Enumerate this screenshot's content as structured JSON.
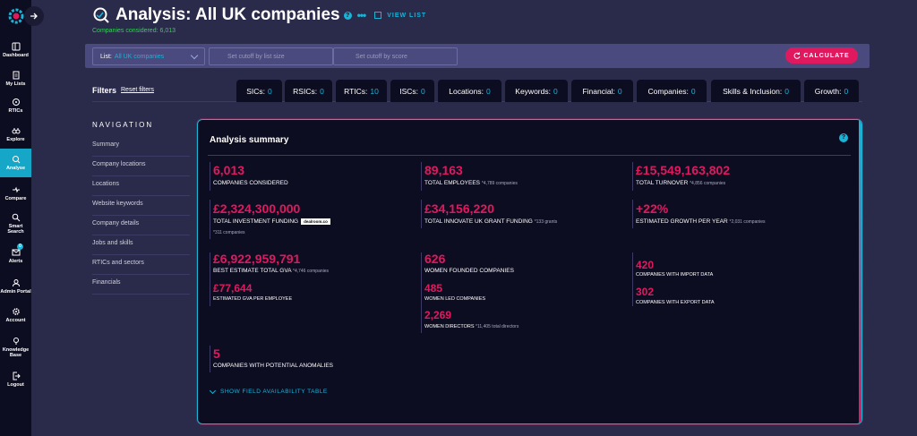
{
  "sidebar": {
    "items": [
      {
        "label": "Dashboard",
        "icon": "dashboard-icon"
      },
      {
        "label": "My Lists",
        "icon": "list-icon"
      },
      {
        "label": "RTICs",
        "icon": "rtics-icon"
      },
      {
        "label": "Explore",
        "icon": "binoculars-icon"
      },
      {
        "label": "Analyse",
        "icon": "analyse-icon"
      },
      {
        "label": "Compare",
        "icon": "compare-icon"
      },
      {
        "label": "Smart Search",
        "icon": "search-icon"
      },
      {
        "label": "Alerts",
        "icon": "alert-icon"
      },
      {
        "label": "Admin Portal",
        "icon": "admin-icon"
      },
      {
        "label": "Account",
        "icon": "gear-icon"
      },
      {
        "label": "Knowledge Base",
        "icon": "lightbulb-icon"
      },
      {
        "label": "Logout",
        "icon": "logout-icon"
      }
    ],
    "alerts_badge": "0"
  },
  "header": {
    "title": "Analysis: All UK companies",
    "more": "•••",
    "view_list": "VIEW LIST",
    "considered": "Companies considered: 6,013"
  },
  "listbar": {
    "list_prefix": "List:",
    "list_value": "All UK companies",
    "cutoff_list_size_placeholder": "Set cutoff by list size",
    "cutoff_score_placeholder": "Set cutoff by score",
    "calculate": "CALCULATE"
  },
  "filters": {
    "label": "Filters",
    "reset": "Reset filters",
    "tabs": [
      {
        "label": "SICs:",
        "count": "0"
      },
      {
        "label": "RSICs:",
        "count": "0"
      },
      {
        "label": "RTICs:",
        "count": "10"
      },
      {
        "label": "ISCs:",
        "count": "0"
      },
      {
        "label": "Locations:",
        "count": "0"
      },
      {
        "label": "Keywords:",
        "count": "0"
      },
      {
        "label": "Financial:",
        "count": "0"
      },
      {
        "label": "Companies:",
        "count": "0"
      },
      {
        "label": "Skills & Inclusion:",
        "count": "0"
      },
      {
        "label": "Growth:",
        "count": "0"
      }
    ]
  },
  "nav": {
    "title": "NAVIGATION",
    "items": [
      "Summary",
      "Company locations",
      "Locations",
      "Website keywords",
      "Company details",
      "Jobs and skills",
      "RTICs and sectors",
      "Financials"
    ]
  },
  "summary": {
    "title": "Analysis summary",
    "companies_considered": {
      "value": "6,013",
      "label": "COMPANIES CONSIDERED"
    },
    "total_employees": {
      "value": "89,163",
      "label": "TOTAL EMPLOYEES",
      "sub": "*4,789 companies"
    },
    "total_turnover": {
      "value": "£15,549,163,802",
      "label": "TOTAL TURNOVER",
      "sub": "*4,856 companies"
    },
    "investment_funding": {
      "value": "£2,324,300,000",
      "label": "TOTAL INVESTMENT FUNDING",
      "badge": "dealroom.co",
      "note": "*311 companies"
    },
    "innovate_grant": {
      "value": "£34,156,220",
      "label": "TOTAL INNOVATE UK GRANT FUNDING",
      "sub": "*133 grants"
    },
    "growth": {
      "value": "+22%",
      "label": "ESTIMATED GROWTH PER YEAR",
      "sub": "*2,031 companies"
    },
    "gva_total": {
      "value": "£6,922,959,791",
      "label": "BEST ESTIMATE TOTAL GVA",
      "sub": "*4,746 companies"
    },
    "gva_per_employee": {
      "value": "£77,644",
      "label": "ESTIMATED GVA PER EMPLOYEE"
    },
    "women_founded": {
      "value": "626",
      "label": "WOMEN FOUNDED COMPANIES"
    },
    "women_led": {
      "value": "485",
      "label": "WOMEN LED COMPANIES"
    },
    "women_directors": {
      "value": "2,269",
      "label": "WOMEN DIRECTORS",
      "sub": "*11,405 total directors"
    },
    "import": {
      "value": "420",
      "label": "COMPANIES WITH IMPORT DATA"
    },
    "export": {
      "value": "302",
      "label": "COMPANIES WITH EXPORT DATA"
    },
    "anomalies": {
      "value": "5",
      "label": "COMPANIES WITH POTENTIAL ANOMALIES"
    },
    "show_table": "SHOW FIELD AVAILABILITY TABLE"
  },
  "colors": {
    "accent": "#19b3d6",
    "highlight": "#e0195f",
    "green": "#34d058",
    "bg": "#2a2a4a",
    "panel": "#0d0d22"
  }
}
